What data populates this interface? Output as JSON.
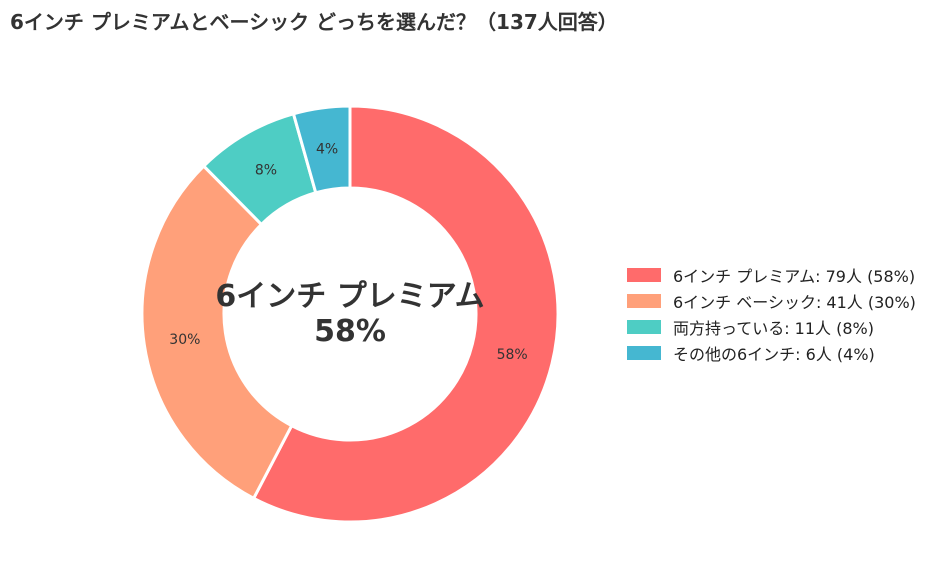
{
  "chart_data": {
    "type": "pie",
    "title": "6インチ プレミアムとベーシック どっちを選んだ？（137人回答）",
    "center_label": {
      "name": "6インチ プレミアム",
      "percent": "58%"
    },
    "slices": [
      {
        "name": "6インチ プレミアム",
        "value": 79,
        "percent_label": "58%",
        "legend_label": "6インチ プレミアム:  79人 (58%)",
        "color": "#FF6B6B"
      },
      {
        "name": "6インチ ベーシック",
        "value": 41,
        "percent_label": "30%",
        "legend_label": "6インチ ベーシック:  41人 (30%)",
        "color": "#FFA07A"
      },
      {
        "name": "両方持っている",
        "value": 11,
        "percent_label": "8%",
        "legend_label": "両方持っている:  11人 (8%)",
        "color": "#4ECDC4"
      },
      {
        "name": "その他の6インチ",
        "value": 6,
        "percent_label": "4%",
        "legend_label": "その他の6インチ:  6人 (4%)",
        "color": "#45B7D1"
      }
    ],
    "total": 137,
    "legend_placement": "right",
    "donut": true
  }
}
